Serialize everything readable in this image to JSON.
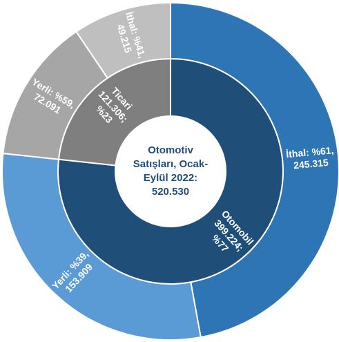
{
  "chart_data": {
    "type": "sunburst",
    "title_lines": [
      "Otomotiv",
      "Satışları, Ocak-",
      "Eylül 2022:"
    ],
    "total": 520530,
    "total_label": "520.530",
    "title_color": "#1f4e79",
    "segments": [
      {
        "name": "Otomobil",
        "value": 399224,
        "value_label": "399.224;",
        "percent": 77,
        "percent_label": "%77",
        "color": "#1f4e79",
        "children": [
          {
            "name": "İthal:",
            "percent": 61,
            "percent_label": "%61,",
            "value": 245315,
            "value_label": "245.315",
            "color": "#2e75b6"
          },
          {
            "name": "Yerli:",
            "percent": 39,
            "percent_label": "%39,",
            "value": 153909,
            "value_label": "153.909",
            "color": "#5b9bd5"
          }
        ]
      },
      {
        "name": "Ticari",
        "value": 121306,
        "value_label": "121.306;",
        "percent": 23,
        "percent_label": "%23",
        "color": "#7f7f7f",
        "children": [
          {
            "name": "Yerli:",
            "percent": 59,
            "percent_label": "%59,",
            "value": 72091,
            "value_label": "72.091",
            "color": "#a6a6a6"
          },
          {
            "name": "İthal:",
            "percent": 41,
            "percent_label": "%41,",
            "value": 49215,
            "value_label": "49.215",
            "color": "#bfbfbf"
          }
        ]
      }
    ]
  }
}
